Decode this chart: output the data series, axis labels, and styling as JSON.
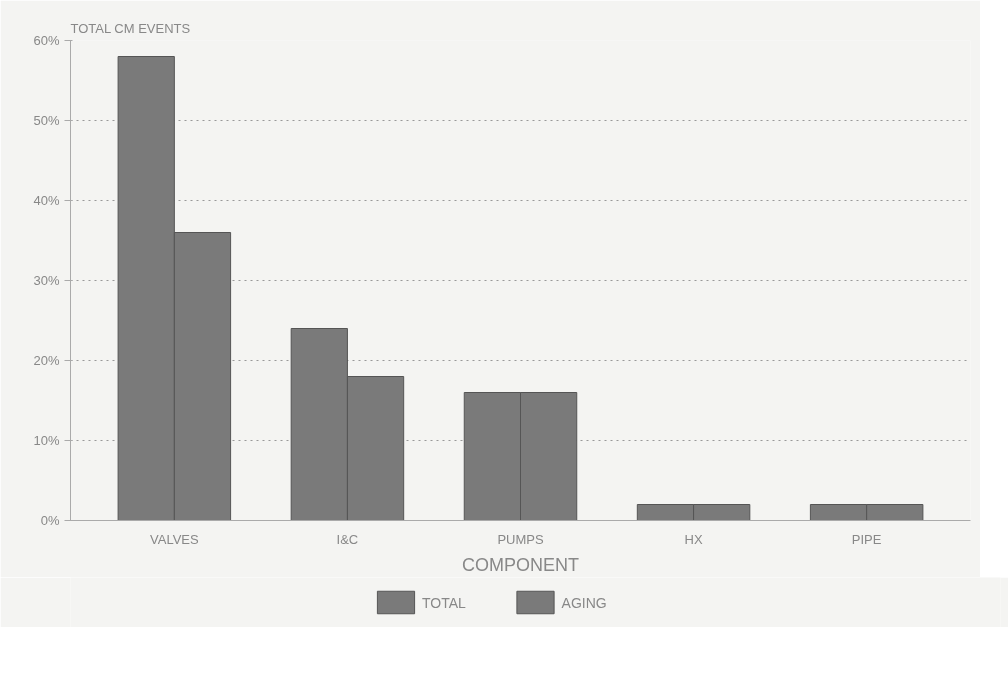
{
  "chart_data": {
    "type": "bar",
    "ylabel": "TOTAL CM EVENTS",
    "xlabel": "COMPONENT",
    "categories": [
      "VALVES",
      "I&C",
      "PUMPS",
      "HX",
      "PIPE"
    ],
    "series": [
      {
        "name": "TOTAL",
        "color": "#7a7a7a",
        "values": [
          58,
          24,
          16,
          2,
          2
        ]
      },
      {
        "name": "AGING",
        "color": "#7a7a7a",
        "values": [
          36,
          18,
          16,
          2,
          2
        ]
      }
    ],
    "ylim": [
      0,
      60
    ],
    "yticks": [
      {
        "value": 0,
        "label": "0%"
      },
      {
        "value": 10,
        "label": "10%"
      },
      {
        "value": 20,
        "label": "20%"
      },
      {
        "value": 30,
        "label": "30%"
      },
      {
        "value": 40,
        "label": "40%"
      },
      {
        "value": 50,
        "label": "50%"
      },
      {
        "value": 60,
        "label": "60%"
      }
    ],
    "grid": "y",
    "legend": "bottom"
  }
}
